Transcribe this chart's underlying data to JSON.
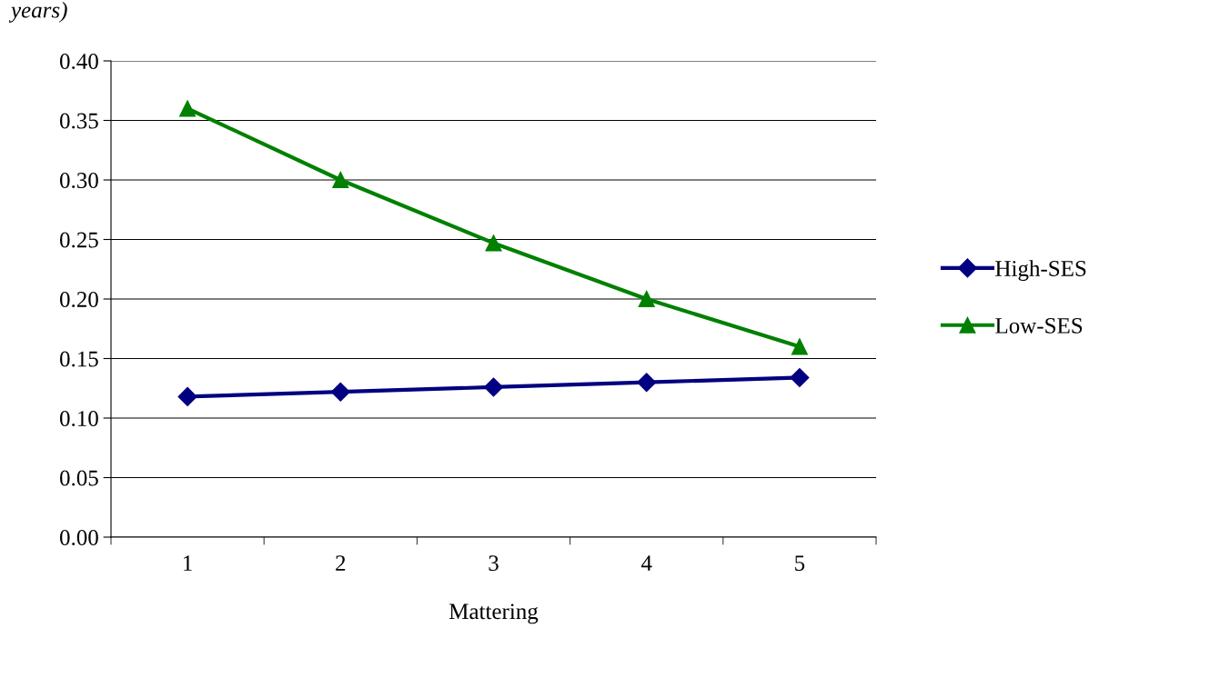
{
  "chart_data": {
    "type": "line",
    "xlabel": "Mattering",
    "annotations": [
      "years)"
    ],
    "categories": [
      "1",
      "2",
      "3",
      "4",
      "5"
    ],
    "series": [
      {
        "name": "High-SES",
        "color": "#000080",
        "marker": "diamond",
        "values": [
          0.118,
          0.122,
          0.126,
          0.13,
          0.134
        ]
      },
      {
        "name": "Low-SES",
        "color": "#008000",
        "marker": "triangle",
        "values": [
          0.36,
          0.3,
          0.247,
          0.2,
          0.16
        ]
      }
    ],
    "ylim": [
      0,
      0.4
    ],
    "yticks": [
      {
        "value": 0,
        "label": "0.00"
      },
      {
        "value": 0.05,
        "label": "0.05"
      },
      {
        "value": 0.1,
        "label": "0.10"
      },
      {
        "value": 0.15,
        "label": "0.15"
      },
      {
        "value": 0.2,
        "label": "0.20"
      },
      {
        "value": 0.25,
        "label": "0.25"
      },
      {
        "value": 0.3,
        "label": "0.30"
      },
      {
        "value": 0.35,
        "label": "0.35"
      },
      {
        "value": 0.4,
        "label": "0.40"
      }
    ],
    "grid": "y",
    "legend": "right",
    "line_style": "solid"
  }
}
